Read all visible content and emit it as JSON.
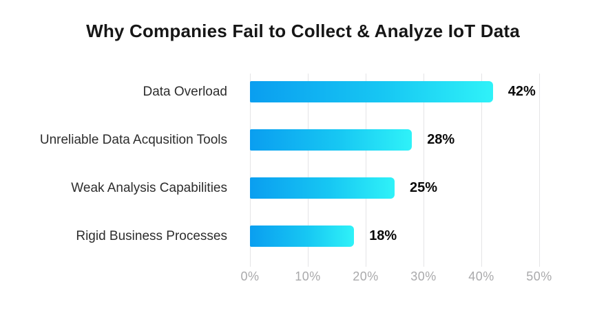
{
  "chart_data": {
    "type": "bar",
    "orientation": "horizontal",
    "title": "Why Companies Fail to Collect & Analyze IoT Data",
    "categories": [
      "Data Overload",
      "Unreliable Data Acqusition Tools",
      "Weak Analysis Capabilities",
      "Rigid Business Processes"
    ],
    "values": [
      42,
      28,
      25,
      18
    ],
    "value_labels": [
      "42%",
      "28%",
      "25%",
      "18%"
    ],
    "x_ticks": [
      "0%",
      "10%",
      "20%",
      "30%",
      "40%",
      "50%"
    ],
    "xlabel": "",
    "ylabel": "",
    "xlim": [
      0,
      50
    ],
    "grid": "vertical-only",
    "legend": "none",
    "colors": {
      "bar_gradient_start": "#0a9ef0",
      "bar_gradient_end": "#2ff2f8",
      "title_text": "#161616",
      "category_text": "#2d2d2d",
      "value_text": "#0a0a0a",
      "tick_text": "#a9a9ab",
      "gridline": "#e4e4e6",
      "background": "#ffffff"
    }
  }
}
